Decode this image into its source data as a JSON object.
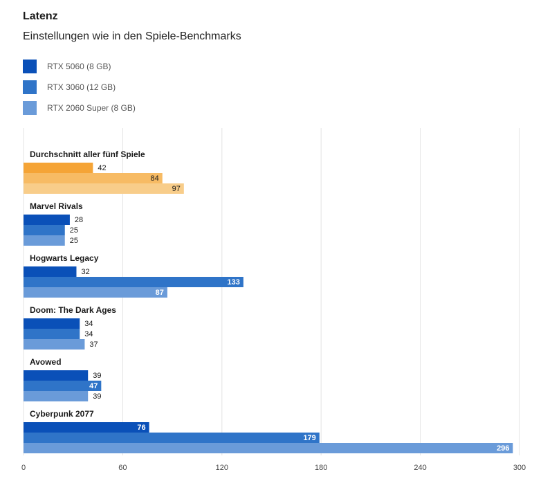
{
  "chart_data": {
    "type": "bar",
    "orientation": "horizontal",
    "title": "Latenz",
    "subtitle": "Einstellungen wie in den Spiele-Benchmarks",
    "categories": [
      "Durchschnitt aller fünf Spiele",
      "Marvel Rivals",
      "Hogwarts Legacy",
      "Doom: The Dark Ages",
      "Avowed",
      "Cyberpunk 2077"
    ],
    "series": [
      {
        "name": "RTX 5060 (8 GB)",
        "color": "#0a50b8",
        "highlight_color": "#f5a436",
        "values": [
          42,
          28,
          32,
          34,
          39,
          76
        ]
      },
      {
        "name": "RTX 3060 (12 GB)",
        "color": "#2f74c8",
        "highlight_color": "#f7bb64",
        "values": [
          84,
          25,
          133,
          34,
          47,
          179
        ]
      },
      {
        "name": "RTX 2060 Super (8 GB)",
        "color": "#6a9bd9",
        "highlight_color": "#f8cd8a",
        "values": [
          97,
          25,
          87,
          37,
          39,
          296
        ]
      }
    ],
    "highlight_category": "Durchschnitt aller fünf Spiele",
    "xlim": [
      0,
      300
    ],
    "xticks": [
      0,
      60,
      120,
      180,
      240,
      300
    ],
    "grid": true,
    "xlabel": "",
    "ylabel": ""
  }
}
